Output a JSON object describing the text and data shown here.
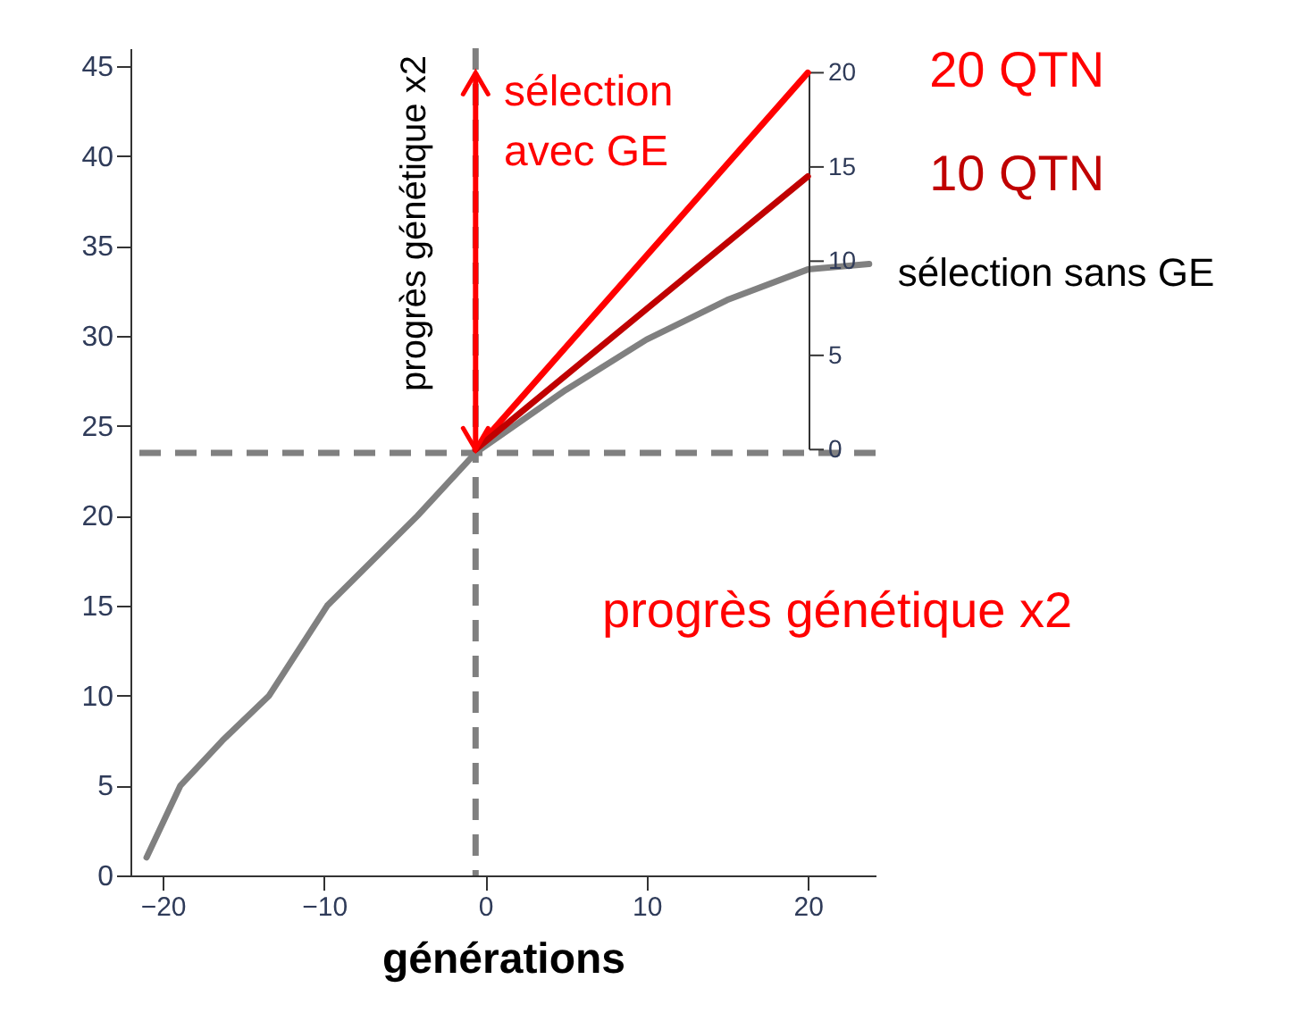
{
  "chart_data": {
    "type": "line",
    "xlabel": "générations",
    "xlim": [
      -22,
      24.2
    ],
    "xticks": [
      -20,
      -10,
      0,
      10,
      20
    ],
    "ylim": [
      0,
      46
    ],
    "yticks": [
      0,
      5,
      10,
      15,
      20,
      25,
      30,
      35,
      40,
      45
    ],
    "y2lim": [
      -22.6,
      21.3
    ],
    "y2ticks": [
      0,
      5,
      10,
      15,
      20
    ],
    "series": [
      {
        "name": "sélection sans GE",
        "color": "#808080",
        "x": [
          -21,
          -18.9,
          -16.3,
          -13.4,
          -9.8,
          -4.2,
          -0.6,
          5,
          10,
          15,
          20,
          23.8
        ],
        "values": [
          1,
          5,
          7.5,
          10,
          15,
          20,
          23.5,
          27,
          29.8,
          32,
          33.7,
          34
        ]
      },
      {
        "name": "20 QTN",
        "color": "#ff0000",
        "axis": "y2",
        "x": [
          -0.6,
          20
        ],
        "values": [
          0,
          20
        ]
      },
      {
        "name": "10 QTN",
        "color": "#c00000",
        "axis": "y2",
        "x": [
          -0.6,
          20
        ],
        "values": [
          0,
          14.5
        ]
      }
    ],
    "ref_lines": [
      {
        "axis": "x",
        "value": -0.6,
        "color": "#808080",
        "line_style": "dashed"
      },
      {
        "axis": "y",
        "value": 23.5,
        "color": "#808080",
        "line_style": "dashed"
      }
    ],
    "annotations": [
      "progrès génétique x2",
      "sélection avec GE",
      "progrès génétique x2"
    ],
    "marker": "none",
    "grid": false
  }
}
